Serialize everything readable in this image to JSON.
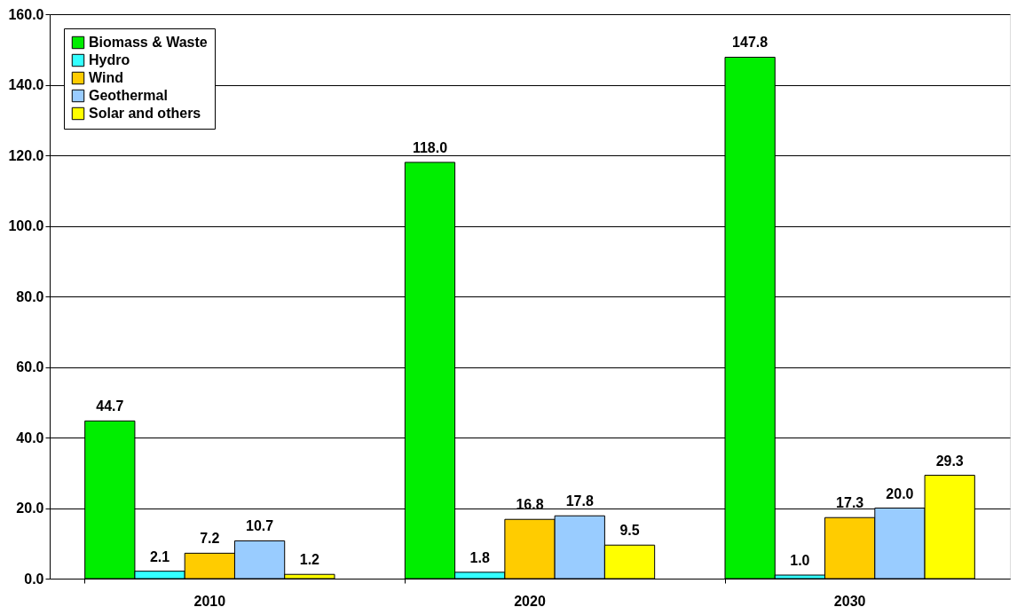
{
  "chart_data": {
    "type": "bar",
    "categories": [
      "2010",
      "2020",
      "2030"
    ],
    "series": [
      {
        "name": "Biomass & Waste",
        "color": "#00ee00",
        "values": [
          44.7,
          118.0,
          147.8
        ],
        "value_labels": [
          "44.7",
          "118.0",
          "147.8"
        ]
      },
      {
        "name": "Hydro",
        "color": "#33ffff",
        "values": [
          2.1,
          1.8,
          1.0
        ],
        "value_labels": [
          "2.1",
          "1.8",
          "1.0"
        ]
      },
      {
        "name": "Wind",
        "color": "#ffcc00",
        "values": [
          7.2,
          16.8,
          17.3
        ],
        "value_labels": [
          "7.2",
          "16.8",
          "17.3"
        ]
      },
      {
        "name": "Geothermal",
        "color": "#99ccff",
        "values": [
          10.7,
          17.8,
          20.0
        ],
        "value_labels": [
          "10.7",
          "17.8",
          "20.0"
        ]
      },
      {
        "name": "Solar and others",
        "color": "#ffff00",
        "values": [
          1.2,
          9.5,
          29.3
        ],
        "value_labels": [
          "1.2",
          "9.5",
          "29.3"
        ]
      }
    ],
    "ylim": [
      0,
      160
    ],
    "yticks": [
      {
        "value": 0,
        "label": "0.0"
      },
      {
        "value": 20,
        "label": "20.0"
      },
      {
        "value": 40,
        "label": "40.0"
      },
      {
        "value": 60,
        "label": "60.0"
      },
      {
        "value": 80,
        "label": "80.0"
      },
      {
        "value": 100,
        "label": "100.0"
      },
      {
        "value": 120,
        "label": "120.0"
      },
      {
        "value": 140,
        "label": "140.0"
      },
      {
        "value": 160,
        "label": "160.0"
      }
    ],
    "grid": "y",
    "legend": "top left"
  }
}
